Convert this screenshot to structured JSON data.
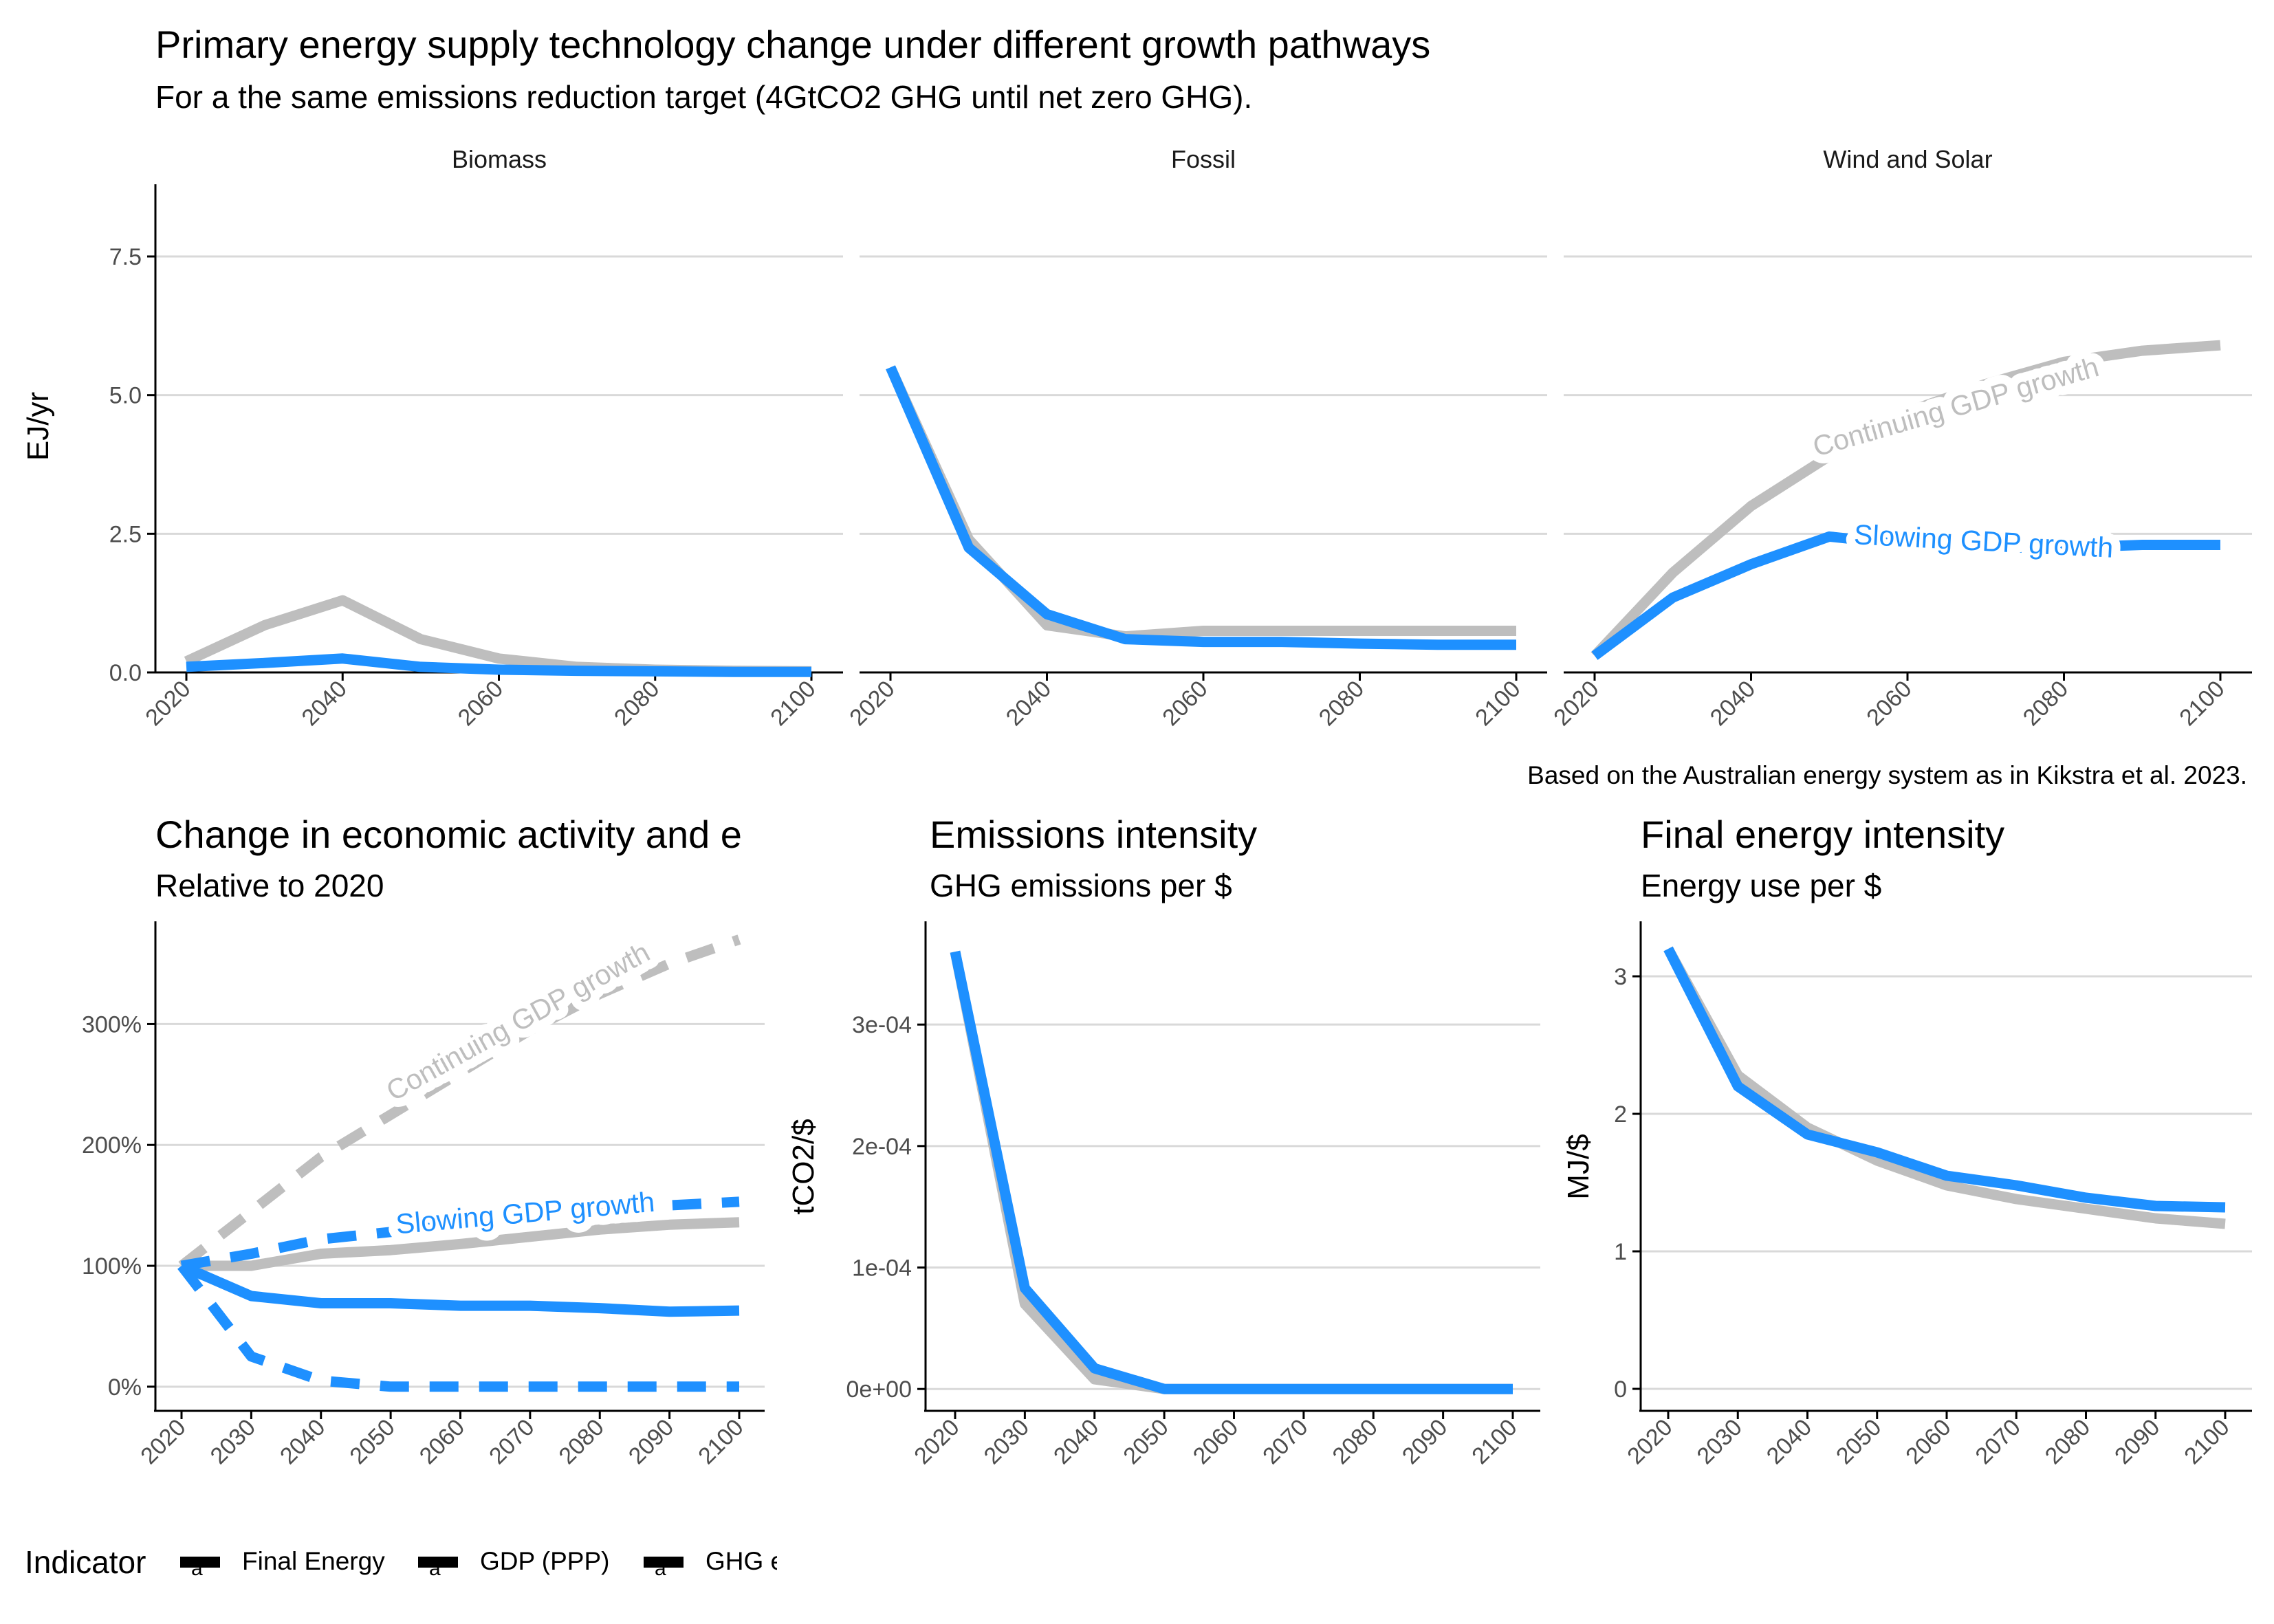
{
  "figure": {
    "title": "Primary energy supply technology change under different growth pathways",
    "subtitle": "For a the same emissions reduction target (4GtCO2 GHG until net zero GHG).",
    "caption": "Based on the Australian energy system as in Kikstra et al. 2023."
  },
  "colors": {
    "continuing": "#bebebe",
    "slowing": "#1e90ff",
    "axis": "#000000",
    "grid": "#d9d9d9",
    "tick_text": "#4d4d4d"
  },
  "legend": {
    "title": "Indicator",
    "items": [
      "Final Energy",
      "GDP (PPP)",
      "GHG e"
    ],
    "key_glyph": "a",
    "position": "bottom-left"
  },
  "chart_data": [
    {
      "id": "supply",
      "type": "line",
      "ylabel": "EJ/yr",
      "xlabel": "",
      "ylim": [
        0,
        9
      ],
      "xlim": [
        2020,
        2100
      ],
      "y_ticks": [
        0,
        2.5,
        5,
        7.5
      ],
      "y_tick_labels": [
        "0.0",
        "2.5",
        "5.0",
        "7.5"
      ],
      "x_ticks": [
        2020,
        2040,
        2060,
        2080,
        2100
      ],
      "x_tick_labels": [
        "2020",
        "2040",
        "2060",
        "2080",
        "2100"
      ],
      "grid": "horizontal major",
      "facets": [
        {
          "name": "Biomass",
          "series": [
            {
              "group": "continuing",
              "x": [
                2020,
                2030,
                2040,
                2050,
                2060,
                2070,
                2080,
                2090,
                2100
              ],
              "y": [
                0.2,
                0.85,
                1.3,
                0.6,
                0.25,
                0.1,
                0.05,
                0.03,
                0.02
              ]
            },
            {
              "group": "slowing",
              "x": [
                2020,
                2030,
                2040,
                2050,
                2060,
                2070,
                2080,
                2090,
                2100
              ],
              "y": [
                0.1,
                0.17,
                0.25,
                0.1,
                0.05,
                0.03,
                0.02,
                0.01,
                0.01
              ]
            }
          ]
        },
        {
          "name": "Fossil",
          "series": [
            {
              "group": "continuing",
              "x": [
                2020,
                2030,
                2040,
                2050,
                2060,
                2070,
                2080,
                2090,
                2100
              ],
              "y": [
                5.5,
                2.4,
                0.85,
                0.65,
                0.75,
                0.75,
                0.75,
                0.75,
                0.75
              ]
            },
            {
              "group": "slowing",
              "x": [
                2020,
                2030,
                2040,
                2050,
                2060,
                2070,
                2080,
                2090,
                2100
              ],
              "y": [
                5.5,
                2.25,
                1.05,
                0.6,
                0.55,
                0.55,
                0.52,
                0.5,
                0.5
              ]
            }
          ]
        },
        {
          "name": "Wind and Solar",
          "series": [
            {
              "group": "continuing",
              "x": [
                2020,
                2030,
                2040,
                2050,
                2060,
                2070,
                2080,
                2090,
                2100
              ],
              "y": [
                0.3,
                1.8,
                3.0,
                3.9,
                4.7,
                5.2,
                5.6,
                5.8,
                5.9
              ]
            },
            {
              "group": "slowing",
              "x": [
                2020,
                2030,
                2040,
                2050,
                2060,
                2070,
                2080,
                2090,
                2100
              ],
              "y": [
                0.3,
                1.35,
                1.95,
                2.45,
                2.3,
                2.25,
                2.25,
                2.3,
                2.3
              ]
            }
          ],
          "annotations": [
            {
              "text": "Continuing GDP growth",
              "group": "continuing"
            },
            {
              "text": "Slowing GDP growth",
              "group": "slowing"
            }
          ]
        }
      ]
    },
    {
      "id": "activity",
      "type": "line",
      "title": "Change in economic activity and e",
      "subtitle": "Relative to 2020",
      "xlabel": "",
      "ylabel": "",
      "ylim": [
        -20,
        385
      ],
      "xlim": [
        2020,
        2100
      ],
      "y_ticks": [
        0,
        100,
        200,
        300
      ],
      "y_tick_labels": [
        "0%",
        "100%",
        "200%",
        "300%"
      ],
      "x_ticks": [
        2020,
        2030,
        2040,
        2050,
        2060,
        2070,
        2080,
        2090,
        2100
      ],
      "x_tick_labels": [
        "2020",
        "2030",
        "2040",
        "2050",
        "2060",
        "2070",
        "2080",
        "2090",
        "2100"
      ],
      "grid": "horizontal major",
      "series": [
        {
          "name": "GDP (PPP)",
          "group": "continuing",
          "dash": true,
          "x": [
            2020,
            2030,
            2040,
            2050,
            2060,
            2070,
            2080,
            2090,
            2100
          ],
          "y": [
            100,
            145,
            190,
            225,
            260,
            295,
            325,
            350,
            370
          ]
        },
        {
          "name": "Final Energy",
          "group": "continuing",
          "dash": false,
          "x": [
            2020,
            2030,
            2040,
            2050,
            2060,
            2070,
            2080,
            2090,
            2100
          ],
          "y": [
            100,
            100,
            110,
            113,
            118,
            124,
            130,
            134,
            136
          ]
        },
        {
          "name": "GDP (PPP)",
          "group": "slowing",
          "dash": true,
          "x": [
            2020,
            2030,
            2040,
            2050,
            2060,
            2070,
            2080,
            2090,
            2100
          ],
          "y": [
            100,
            110,
            122,
            128,
            134,
            140,
            145,
            150,
            153
          ]
        },
        {
          "name": "Final Energy",
          "group": "slowing",
          "dash": false,
          "x": [
            2020,
            2030,
            2040,
            2050,
            2060,
            2070,
            2080,
            2090,
            2100
          ],
          "y": [
            100,
            75,
            69,
            69,
            67,
            67,
            65,
            62,
            63
          ]
        },
        {
          "name": "GHG e",
          "group": "slowing",
          "dash": true,
          "x": [
            2020,
            2030,
            2040,
            2050,
            2060,
            2070,
            2080,
            2090,
            2100
          ],
          "y": [
            100,
            25,
            5,
            0,
            0,
            0,
            0,
            0,
            0
          ]
        }
      ],
      "annotations": [
        {
          "text": "Continuing GDP growth",
          "group": "continuing"
        },
        {
          "text": "Slowing GDP growth",
          "group": "slowing"
        }
      ]
    },
    {
      "id": "emissions",
      "type": "line",
      "title": "Emissions intensity",
      "subtitle": "GHG emissions per $",
      "xlabel": "",
      "ylabel": "tCO2/$",
      "ylim": [
        -1.8e-05,
        0.000385
      ],
      "xlim": [
        2020,
        2100
      ],
      "y_ticks": [
        0,
        0.0001,
        0.0002,
        0.0003
      ],
      "y_tick_labels": [
        "0e+00",
        "1e-04",
        "2e-04",
        "3e-04"
      ],
      "x_ticks": [
        2020,
        2030,
        2040,
        2050,
        2060,
        2070,
        2080,
        2090,
        2100
      ],
      "x_tick_labels": [
        "2020",
        "2030",
        "2040",
        "2050",
        "2060",
        "2070",
        "2080",
        "2090",
        "2100"
      ],
      "grid": "horizontal major",
      "series": [
        {
          "group": "continuing",
          "x": [
            2020,
            2030,
            2040,
            2050,
            2060,
            2070,
            2080,
            2090,
            2100
          ],
          "y": [
            0.00036,
            7e-05,
            8e-06,
            0,
            0,
            0,
            0,
            0,
            0
          ]
        },
        {
          "group": "slowing",
          "x": [
            2020,
            2030,
            2040,
            2050,
            2060,
            2070,
            2080,
            2090,
            2100
          ],
          "y": [
            0.00036,
            8.3e-05,
            1.7e-05,
            0,
            0,
            0,
            0,
            0,
            0
          ]
        }
      ]
    },
    {
      "id": "energy",
      "type": "line",
      "title": "Final energy intensity",
      "subtitle": "Energy use per $",
      "xlabel": "",
      "ylabel": "MJ/$",
      "ylim": [
        -0.16,
        3.4
      ],
      "xlim": [
        2020,
        2100
      ],
      "y_ticks": [
        0,
        1,
        2,
        3
      ],
      "y_tick_labels": [
        "0",
        "1",
        "2",
        "3"
      ],
      "x_ticks": [
        2020,
        2030,
        2040,
        2050,
        2060,
        2070,
        2080,
        2090,
        2100
      ],
      "x_tick_labels": [
        "2020",
        "2030",
        "2040",
        "2050",
        "2060",
        "2070",
        "2080",
        "2090",
        "2100"
      ],
      "grid": "horizontal major",
      "series": [
        {
          "group": "continuing",
          "x": [
            2020,
            2030,
            2040,
            2050,
            2060,
            2070,
            2080,
            2090,
            2100
          ],
          "y": [
            3.2,
            2.28,
            1.9,
            1.66,
            1.48,
            1.38,
            1.31,
            1.24,
            1.2
          ]
        },
        {
          "group": "slowing",
          "x": [
            2020,
            2030,
            2040,
            2050,
            2060,
            2070,
            2080,
            2090,
            2100
          ],
          "y": [
            3.2,
            2.2,
            1.85,
            1.72,
            1.55,
            1.48,
            1.39,
            1.33,
            1.32
          ]
        }
      ]
    }
  ]
}
